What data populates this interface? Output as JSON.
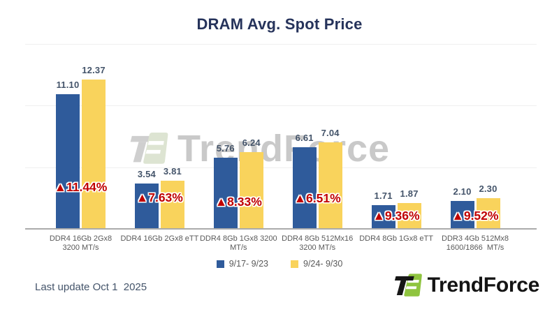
{
  "title": "DRAM Avg. Spot Price",
  "chart_data": {
    "type": "bar",
    "title": "DRAM Avg. Spot Price",
    "categories": [
      {
        "line1": "DDR4 16Gb 2Gx8",
        "line2": "3200 MT/s"
      },
      {
        "line1": "DDR4 16Gb 2Gx8 eTT",
        "line2": ""
      },
      {
        "line1": "DDR4 8Gb 1Gx8 3200",
        "line2": "MT/s"
      },
      {
        "line1": "DDR4 8Gb 512Mx16",
        "line2": "3200 MT/s"
      },
      {
        "line1": "DDR4 8Gb 1Gx8 eTT",
        "line2": ""
      },
      {
        "line1": "DDR3 4Gb 512Mx8",
        "line2": "1600/1866  MT/s"
      }
    ],
    "series": [
      {
        "name": "9/17- 9/23",
        "color": "#2F5B9B",
        "values": [
          "11.10",
          "3.54",
          "5.76",
          "6.61",
          "1.71",
          "2.10"
        ]
      },
      {
        "name": "9/24- 9/30",
        "color": "#F9D35C",
        "values": [
          "12.37",
          "3.81",
          "6.24",
          "7.04",
          "1.87",
          "2.30"
        ]
      }
    ],
    "weekly_change": [
      "▲11.44%",
      "▲7.63%",
      "▲8.33%",
      "▲6.51%",
      "▲9.36%",
      "▲9.52%"
    ],
    "ylim": [
      0,
      15
    ],
    "grid": "horizontal",
    "legend_position": "bottom",
    "value_labels_shown": true,
    "layout": {
      "gridline_values": [
        5,
        10,
        15
      ],
      "change_label_offsets": [
        58,
        43,
        37,
        42,
        17,
        17
      ]
    }
  },
  "legend": {
    "items": [
      {
        "label": "9/17- 9/23",
        "color": "#2F5B9B"
      },
      {
        "label": "9/24- 9/30",
        "color": "#F9D35C"
      }
    ]
  },
  "watermark": {
    "text": "TrendForce"
  },
  "footer": {
    "last_update": "Last update Oct 1  2025",
    "brand": "TrendForce"
  },
  "colors": {
    "bar_week1": "#2F5B9B",
    "bar_week2": "#F9D35C",
    "change_red": "#C00000",
    "value_label": "#44546A",
    "title_navy": "#26335B",
    "axis_gray": "#ABABAB",
    "logo_green": "#8FC43F",
    "logo_black": "#161616"
  }
}
